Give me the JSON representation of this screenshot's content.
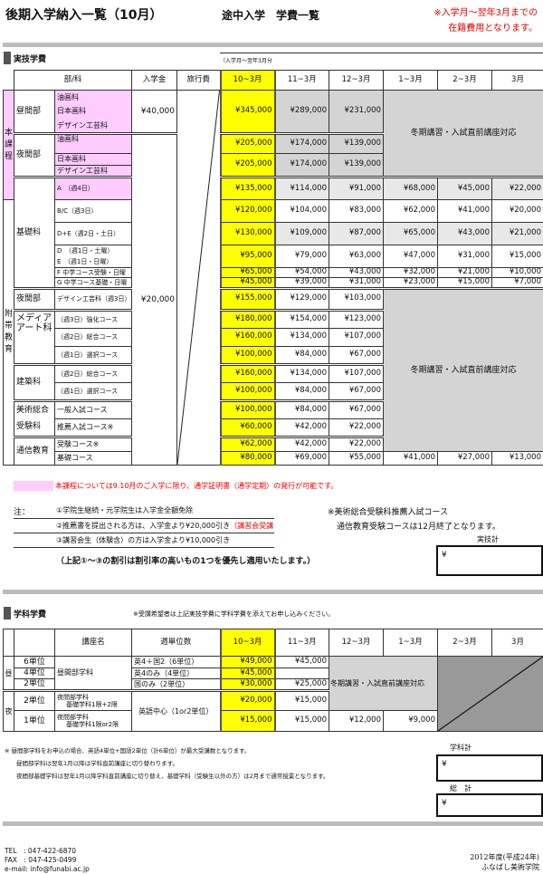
{
  "header": {
    "title": "後期入学納入一覧（10月）",
    "subtitle": "途中入学　学費一覧",
    "note_line1": "※入学月～翌年3月までの",
    "note_line2": "在籍費用となります。"
  },
  "jitsugi": {
    "section_title": "実技学費",
    "period_note": "（入学月～翌年3月分",
    "headers": [
      "部/科",
      "入学金",
      "旅行費",
      "10~3月",
      "11~3月",
      "12~3月",
      "1~3月",
      "2~3月",
      "3月"
    ],
    "winter": "冬期講習・入試直前講座対応",
    "honka": {
      "label": "本課程",
      "hiru": {
        "dept": "昼間部",
        "subjects": [
          "油画科",
          "日本画科",
          "デザイン工芸科"
        ],
        "entry": "¥40,000",
        "fees": [
          "¥345,000",
          "¥289,000",
          "¥231,000"
        ]
      },
      "yoru": {
        "dept": "夜間部",
        "subjects": [
          "油画科",
          "日本画科",
          "デザイン工芸科"
        ],
        "fees1": [
          "¥205,000",
          "¥174,000",
          "¥139,000"
        ],
        "fees2": [
          "¥205,000",
          "¥174,000",
          "¥139,000"
        ]
      }
    },
    "kiso": {
      "dept": "基礎科",
      "rows": [
        {
          "course": "A　（週4日）",
          "fees": [
            "¥135,000",
            "¥114,000",
            "¥91,000",
            "¥68,000",
            "¥45,000",
            "¥22,000"
          ]
        },
        {
          "course": "B/C（週3日）",
          "fees": [
            "¥120,000",
            "¥104,000",
            "¥83,000",
            "¥62,000",
            "¥41,000",
            "¥20,000"
          ]
        },
        {
          "course": "D+E（週2日・土日）",
          "fees": [
            "¥130,000",
            "¥109,000",
            "¥87,000",
            "¥65,000",
            "¥43,000",
            "¥21,000"
          ]
        },
        {
          "course": "D　（週1日・土曜）",
          "course2": "E　（週1日・日曜）",
          "fees": [
            "¥95,000",
            "¥79,000",
            "¥63,000",
            "¥47,000",
            "¥31,000",
            "¥15,000"
          ]
        },
        {
          "course": "F 中学コース受験・日曜",
          "fees": [
            "¥65,000",
            "¥54,000",
            "¥43,000",
            "¥32,000",
            "¥21,000",
            "¥10,000"
          ]
        },
        {
          "course": "G 中学コース基礎・日曜",
          "fees": [
            "¥45,000",
            "¥39,000",
            "¥31,000",
            "¥23,000",
            "¥15,000",
            "¥7,000"
          ]
        }
      ]
    },
    "futai": {
      "label": "附帯教育",
      "entry": "¥20,000",
      "yakan": {
        "dept": "夜間部",
        "course": "デザイン工芸科（週3日）",
        "fees": [
          "¥155,000",
          "¥129,000",
          "¥103,000"
        ]
      },
      "media": {
        "dept": "メディアアート科",
        "rows": [
          {
            "course": "（週3日）強化コース",
            "fees": [
              "¥180,000",
              "¥154,000",
              "¥123,000"
            ]
          },
          {
            "course": "（週2日）総合コース",
            "fees": [
              "¥160,000",
              "¥134,000",
              "¥107,000"
            ]
          },
          {
            "course": "（週1日）選択コース",
            "fees": [
              "¥100,000",
              "¥84,000",
              "¥67,000"
            ]
          }
        ]
      },
      "kenchiku": {
        "dept": "建築科",
        "rows": [
          {
            "course": "（週2日）総合コース",
            "fees": [
              "¥160,000",
              "¥134,000",
              "¥107,000"
            ]
          },
          {
            "course": "（週1日）選択コース",
            "fees": [
              "¥100,000",
              "¥84,000",
              "¥67,000"
            ]
          }
        ]
      },
      "bijutsu": {
        "dept": "美術総合受験科",
        "rows": [
          {
            "course": "一般入試コース",
            "fees": [
              "¥100,000",
              "¥84,000",
              "¥67,000"
            ]
          },
          {
            "course": "推薦入試コース※",
            "fees": [
              "¥60,000",
              "¥42,000",
              "¥22,000"
            ]
          }
        ]
      },
      "tsushin": {
        "dept": "通信教育",
        "rows": [
          {
            "course": "受験コース※",
            "fees": [
              "¥62,000",
              "¥42,000",
              "¥22,000"
            ]
          },
          {
            "course": "基礎コース",
            "fees": [
              "¥80,000",
              "¥69,000",
              "¥55,000",
              "¥41,000",
              "¥27,000",
              "¥13,000"
            ]
          }
        ]
      }
    }
  },
  "legend": {
    "color": "#ffccff",
    "text": "本課程については9.10月のご入学に限り、通学証明書（通学定期）の発行が可能です。"
  },
  "notes": {
    "label": "注：",
    "items": [
      "①学院生継続・元学院生は入学金全額免除",
      "②推薦書を提出される方は、入学金より¥20,000引き",
      "③講習会生（体験含）の方は入学金より¥10,000引き"
    ],
    "item2_red": "（講習会受講時提出も有効）",
    "priority": "（上記①～③の割引は割引率の高いもの1つを優先し適用いたします。）",
    "side1": "※美術総合受験科推薦入試コース",
    "side2": "通信教育受験コースは12月終了となります。"
  },
  "jitsugi_total": {
    "label": "実技計",
    "value": "¥"
  },
  "gakka": {
    "section_title": "学科学費",
    "note": "※受講希望者は上記実技学費に学科学費を添えてお申し込みください。",
    "headers": [
      "講座名",
      "週単位数",
      "10~3月",
      "11~3月",
      "12~3月",
      "1~3月",
      "2~3月",
      "3月"
    ],
    "winter": "冬期講習・入試直前講座対応",
    "hiru": {
      "label": "昼",
      "course": "昼間部学科",
      "rows": [
        {
          "units": "6単位",
          "weekly": "英4＋国2（6単位）",
          "fees": [
            "¥49,000",
            "¥45,000"
          ]
        },
        {
          "units": "4単位",
          "weekly": "英4のみ（4単位）",
          "fees": [
            "¥45,000",
            ""
          ]
        },
        {
          "units": "2単位",
          "weekly": "国のみ（2単位）",
          "fees": [
            "¥30,000",
            "¥25,000"
          ]
        }
      ]
    },
    "yoru": {
      "label": "夜",
      "weekly": "英語中心（1or2単位）",
      "rows": [
        {
          "units": "2単位",
          "course1": "夜間部学科",
          "course2": "基礎学科1限+2限",
          "fees": [
            "¥20,000",
            "¥15,000"
          ]
        },
        {
          "units": "1単位",
          "course1": "夜間部学科",
          "course2": "基礎学科1限or2限",
          "fees": [
            "¥15,000",
            "¥15,000",
            "¥12,000",
            "¥9,000"
          ]
        }
      ]
    }
  },
  "gakka_notes": [
    "※ 昼間部学科をお申込の場合、英語4単位+国語2単位（計6単位）が最大受講数となります。",
    "昼間部学科は翌年1月以降は学科直前講座に切り替わります。",
    "夜間部基礎学科は翌年1月以降学科直前講座に切り替え、基礎学科（受験生以外の方）は2月まで通常授業となります。"
  ],
  "gakka_total": {
    "label": "学科計",
    "value": "¥"
  },
  "grand_total": {
    "label": "総　計",
    "value": "¥"
  },
  "footer": {
    "tel": "TEL　: 047-422-6870",
    "fax": "FAX　: 047-425-0499",
    "email": "e-mail: info@funabi.ac.jp",
    "year": "2012年度(平成24年)",
    "school": "ふなばし美術学院"
  }
}
